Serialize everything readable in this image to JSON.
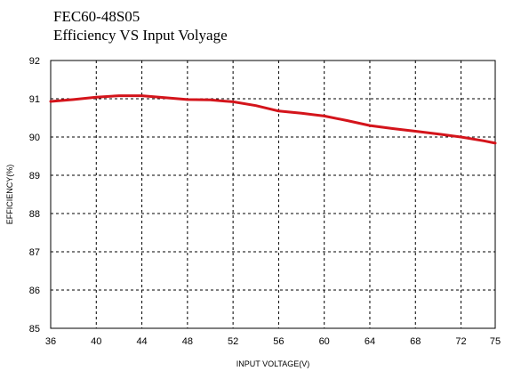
{
  "chart_data": {
    "type": "line",
    "title": "FEC60-48S05",
    "subtitle": "Efficiency VS Input Volyage",
    "xlabel": "INPUT VOLTAGE(V)",
    "ylabel": "EFFICIENCY(%)",
    "xlim": [
      36,
      75
    ],
    "ylim": [
      85,
      92
    ],
    "x_ticks": [
      36,
      40,
      44,
      48,
      52,
      56,
      60,
      64,
      68,
      72,
      75
    ],
    "y_ticks": [
      85,
      86,
      87,
      88,
      89,
      90,
      91,
      92
    ],
    "grid": true,
    "grid_style": "dotted",
    "line_color": "#d4141b",
    "series": [
      {
        "x": [
          36,
          38,
          40,
          42,
          44,
          46,
          48,
          50,
          52,
          54,
          56,
          58,
          60,
          62,
          64,
          66,
          68,
          70,
          72,
          74,
          75
        ],
        "values": [
          90.93,
          90.98,
          91.04,
          91.08,
          91.08,
          91.03,
          90.98,
          90.97,
          90.92,
          90.82,
          90.68,
          90.62,
          90.55,
          90.43,
          90.3,
          90.22,
          90.15,
          90.08,
          90.0,
          89.9,
          89.84
        ]
      }
    ]
  }
}
